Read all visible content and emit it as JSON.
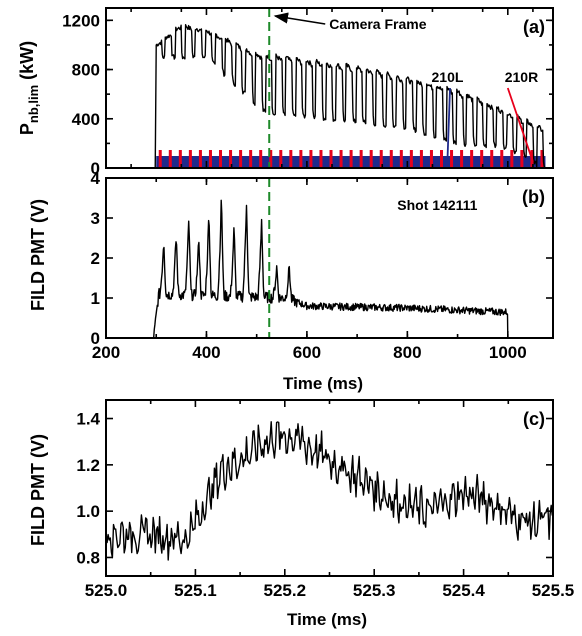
{
  "chart_data": [
    {
      "panel": "(a)",
      "type": "line",
      "ylabel_main": "P",
      "ylabel_sub": "nb,lim",
      "ylabel_unit": " (kW)",
      "xlim": [
        200,
        1090
      ],
      "ylim": [
        0,
        1300
      ],
      "yticks": [
        0,
        400,
        800,
        1200
      ],
      "xticks": [
        200,
        400,
        600,
        800,
        1000
      ],
      "beam_on_ms": 300,
      "modulation_period_ms": 20,
      "beam_off_ms": 1075,
      "pulse_peak_envelope": [
        [
          300,
          1000
        ],
        [
          350,
          1160
        ],
        [
          400,
          1120
        ],
        [
          500,
          930
        ],
        [
          700,
          820
        ],
        [
          900,
          630
        ],
        [
          1000,
          450
        ],
        [
          1070,
          320
        ]
      ],
      "pulse_trough_envelope": [
        [
          300,
          900
        ],
        [
          400,
          900
        ],
        [
          520,
          440
        ],
        [
          600,
          420
        ],
        [
          800,
          330
        ],
        [
          900,
          200
        ],
        [
          1000,
          170
        ],
        [
          1070,
          0
        ]
      ],
      "annotations": {
        "camera": "Camera Frame",
        "b210L": "210L",
        "b210R": "210R"
      },
      "camera_time_ms": 525,
      "beam_210L_color": "#1f2a8c",
      "beam_210R_color": "#e8001c"
    },
    {
      "panel": "(b)",
      "type": "line",
      "ylabel": "FILD PMT (V)",
      "xlabel": "Time (ms)",
      "xlim": [
        200,
        1090
      ],
      "ylim": [
        0,
        4
      ],
      "yticks": [
        0,
        1,
        2,
        3,
        4
      ],
      "xticks": [
        200,
        400,
        600,
        800,
        1000
      ],
      "annotation": "Shot 142111",
      "signal_start_ms": 295,
      "signal_end_ms": 1000,
      "burst_peaks": [
        [
          315,
          2.5
        ],
        [
          340,
          2.6
        ],
        [
          365,
          3.0
        ],
        [
          385,
          2.5
        ],
        [
          405,
          3.2
        ],
        [
          430,
          3.6
        ],
        [
          455,
          2.8
        ],
        [
          480,
          3.5
        ],
        [
          510,
          3.0
        ],
        [
          540,
          1.8
        ],
        [
          565,
          1.8
        ]
      ],
      "baseline_profile": [
        [
          300,
          1.1
        ],
        [
          560,
          1.0
        ],
        [
          600,
          0.8
        ],
        [
          800,
          0.75
        ],
        [
          990,
          0.65
        ]
      ],
      "camera_time_ms": 525
    },
    {
      "panel": "(c)",
      "type": "line",
      "ylabel": "FILD PMT (V)",
      "xlabel": "Time (ms)",
      "xlim": [
        525.0,
        525.5
      ],
      "ylim": [
        0.72,
        1.48
      ],
      "yticks": [
        0.8,
        1.0,
        1.2,
        1.4
      ],
      "xticks": [
        525.0,
        525.1,
        525.2,
        525.3,
        525.4,
        525.5
      ],
      "profile": [
        [
          525.0,
          0.9
        ],
        [
          525.05,
          0.9
        ],
        [
          525.09,
          0.88
        ],
        [
          525.1,
          0.95
        ],
        [
          525.13,
          1.18
        ],
        [
          525.15,
          1.22
        ],
        [
          525.17,
          1.28
        ],
        [
          525.19,
          1.32
        ],
        [
          525.21,
          1.32
        ],
        [
          525.23,
          1.27
        ],
        [
          525.25,
          1.22
        ],
        [
          525.28,
          1.15
        ],
        [
          525.32,
          1.05
        ],
        [
          525.36,
          1.0
        ],
        [
          525.4,
          1.08
        ],
        [
          525.43,
          1.04
        ],
        [
          525.46,
          0.97
        ],
        [
          525.48,
          0.95
        ],
        [
          525.5,
          0.97
        ]
      ]
    }
  ]
}
